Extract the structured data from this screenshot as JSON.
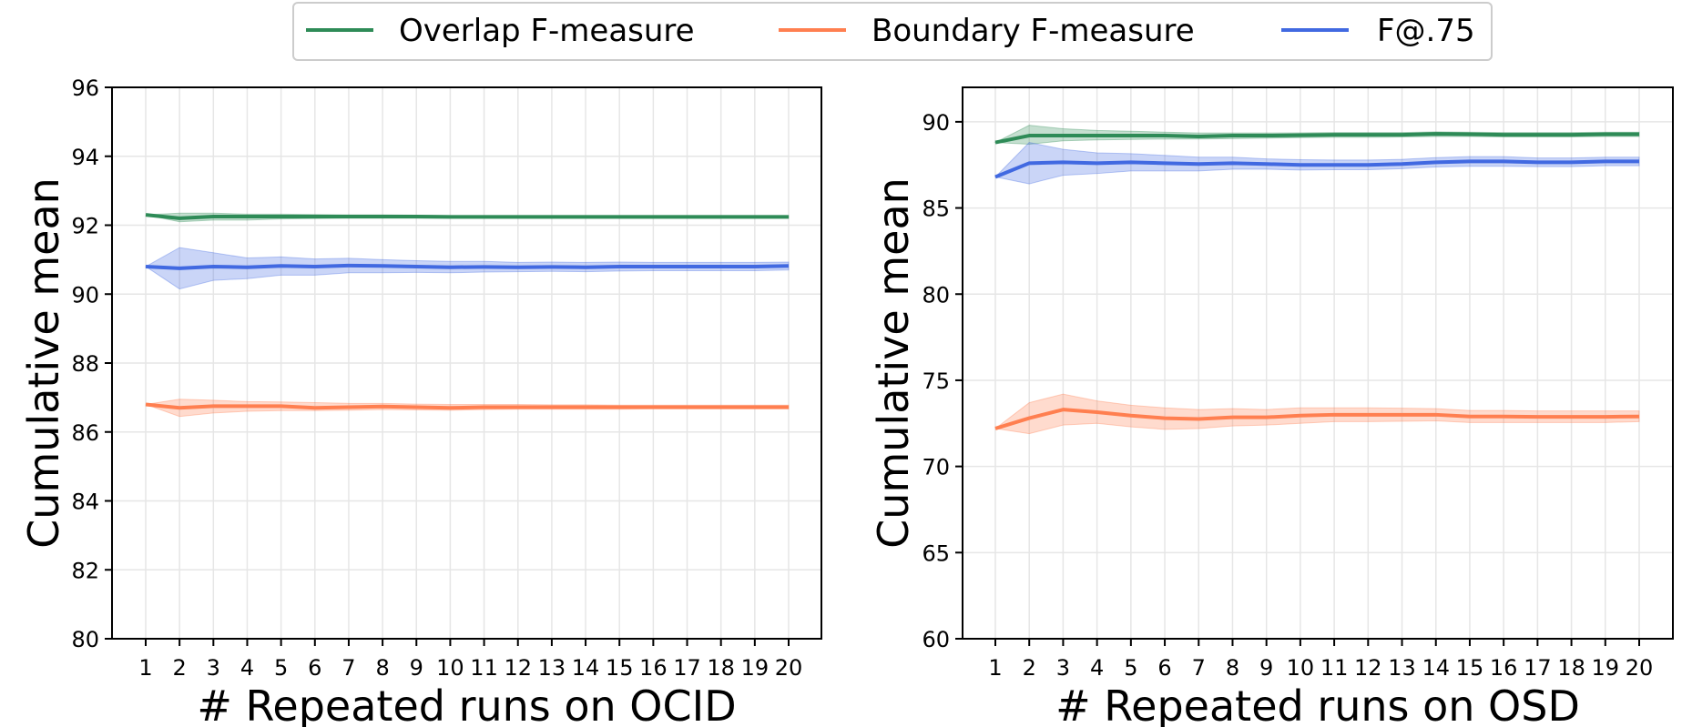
{
  "legend": {
    "placement": "top-center",
    "entries": [
      {
        "label": "Overlap F-measure",
        "color": "#2e8b57"
      },
      {
        "label": "Boundary F-measure",
        "color": "#ff7f50"
      },
      {
        "label": "F@.75",
        "color": "#4169e1"
      }
    ]
  },
  "chart_data": [
    {
      "type": "line",
      "xlabel": "# Repeated runs on OCID",
      "ylabel": "Cumulative mean",
      "ylim": [
        80,
        96
      ],
      "yticks": [
        80,
        82,
        84,
        86,
        88,
        90,
        92,
        94,
        96
      ],
      "x": [
        1,
        2,
        3,
        4,
        5,
        6,
        7,
        8,
        9,
        10,
        11,
        12,
        13,
        14,
        15,
        16,
        17,
        18,
        19,
        20
      ],
      "grid": true,
      "series": [
        {
          "name": "Overlap F-measure",
          "color": "#2e8b57",
          "values": [
            92.3,
            92.2,
            92.25,
            92.25,
            92.25,
            92.25,
            92.25,
            92.25,
            92.25,
            92.24,
            92.24,
            92.24,
            92.24,
            92.24,
            92.24,
            92.24,
            92.24,
            92.24,
            92.24,
            92.24
          ],
          "lower": [
            92.3,
            92.1,
            92.15,
            92.15,
            92.18,
            92.19,
            92.2,
            92.2,
            92.2,
            92.2,
            92.2,
            92.2,
            92.2,
            92.2,
            92.2,
            92.2,
            92.2,
            92.2,
            92.2,
            92.2
          ],
          "upper": [
            92.3,
            92.35,
            92.35,
            92.32,
            92.32,
            92.31,
            92.3,
            92.3,
            92.29,
            92.28,
            92.28,
            92.28,
            92.28,
            92.28,
            92.28,
            92.28,
            92.28,
            92.28,
            92.28,
            92.28
          ]
        },
        {
          "name": "Boundary F-measure",
          "color": "#ff7f50",
          "values": [
            86.8,
            86.7,
            86.75,
            86.75,
            86.75,
            86.7,
            86.72,
            86.74,
            86.72,
            86.7,
            86.72,
            86.72,
            86.72,
            86.72,
            86.72,
            86.72,
            86.72,
            86.72,
            86.72,
            86.72
          ],
          "lower": [
            86.8,
            86.45,
            86.55,
            86.6,
            86.62,
            86.62,
            86.63,
            86.65,
            86.64,
            86.63,
            86.65,
            86.66,
            86.66,
            86.66,
            86.66,
            86.67,
            86.67,
            86.67,
            86.67,
            86.67
          ],
          "upper": [
            86.8,
            86.95,
            86.92,
            86.88,
            86.87,
            86.85,
            86.83,
            86.83,
            86.81,
            86.8,
            86.8,
            86.8,
            86.79,
            86.79,
            86.78,
            86.78,
            86.78,
            86.78,
            86.78,
            86.78
          ]
        },
        {
          "name": "F@.75",
          "color": "#4169e1",
          "values": [
            90.8,
            90.75,
            90.8,
            90.78,
            90.82,
            90.8,
            90.83,
            90.82,
            90.8,
            90.78,
            90.79,
            90.78,
            90.79,
            90.78,
            90.8,
            90.8,
            90.8,
            90.8,
            90.8,
            90.82
          ],
          "lower": [
            90.8,
            90.15,
            90.4,
            90.45,
            90.55,
            90.55,
            90.62,
            90.62,
            90.63,
            90.62,
            90.64,
            90.65,
            90.66,
            90.65,
            90.67,
            90.68,
            90.68,
            90.68,
            90.68,
            90.7
          ],
          "upper": [
            90.8,
            91.35,
            91.2,
            91.05,
            91.08,
            91.02,
            91.04,
            91.0,
            90.97,
            90.95,
            90.95,
            90.92,
            90.93,
            90.92,
            90.93,
            90.92,
            90.92,
            90.92,
            90.92,
            90.93
          ]
        }
      ]
    },
    {
      "type": "line",
      "xlabel": "# Repeated runs on OSD",
      "ylabel": "Cumulative mean",
      "ylim": [
        60,
        92
      ],
      "yticks": [
        60,
        65,
        70,
        75,
        80,
        85,
        90
      ],
      "x": [
        1,
        2,
        3,
        4,
        5,
        6,
        7,
        8,
        9,
        10,
        11,
        12,
        13,
        14,
        15,
        16,
        17,
        18,
        19,
        20
      ],
      "grid": true,
      "series": [
        {
          "name": "Overlap F-measure",
          "color": "#2e8b57",
          "values": [
            88.8,
            89.2,
            89.2,
            89.2,
            89.2,
            89.2,
            89.15,
            89.2,
            89.2,
            89.22,
            89.25,
            89.25,
            89.25,
            89.3,
            89.28,
            89.25,
            89.25,
            89.25,
            89.28,
            89.28
          ],
          "lower": [
            88.8,
            88.7,
            88.9,
            88.95,
            88.98,
            89.0,
            89.0,
            89.02,
            89.05,
            89.08,
            89.1,
            89.1,
            89.12,
            89.15,
            89.15,
            89.12,
            89.12,
            89.12,
            89.15,
            89.15
          ],
          "upper": [
            88.8,
            89.8,
            89.6,
            89.5,
            89.45,
            89.4,
            89.35,
            89.35,
            89.35,
            89.36,
            89.38,
            89.38,
            89.38,
            89.42,
            89.4,
            89.38,
            89.38,
            89.38,
            89.4,
            89.4
          ]
        },
        {
          "name": "Boundary F-measure",
          "color": "#ff7f50",
          "values": [
            72.2,
            72.8,
            73.3,
            73.15,
            72.95,
            72.8,
            72.75,
            72.85,
            72.85,
            72.95,
            73.0,
            73.0,
            73.0,
            73.0,
            72.9,
            72.9,
            72.88,
            72.88,
            72.88,
            72.9
          ],
          "lower": [
            72.2,
            71.9,
            72.4,
            72.5,
            72.3,
            72.15,
            72.2,
            72.35,
            72.4,
            72.5,
            72.6,
            72.6,
            72.62,
            72.65,
            72.55,
            72.55,
            72.55,
            72.55,
            72.55,
            72.6
          ],
          "upper": [
            72.2,
            73.7,
            74.2,
            73.8,
            73.55,
            73.4,
            73.3,
            73.35,
            73.3,
            73.4,
            73.4,
            73.4,
            73.38,
            73.35,
            73.25,
            73.25,
            73.22,
            73.22,
            73.22,
            73.22
          ]
        },
        {
          "name": "F@.75",
          "color": "#4169e1",
          "values": [
            86.8,
            87.6,
            87.65,
            87.6,
            87.65,
            87.6,
            87.55,
            87.6,
            87.55,
            87.5,
            87.5,
            87.5,
            87.55,
            87.65,
            87.7,
            87.7,
            87.65,
            87.65,
            87.7,
            87.7
          ],
          "lower": [
            86.8,
            86.4,
            86.9,
            87.0,
            87.15,
            87.15,
            87.15,
            87.25,
            87.25,
            87.2,
            87.22,
            87.22,
            87.28,
            87.38,
            87.42,
            87.42,
            87.4,
            87.4,
            87.45,
            87.45
          ],
          "upper": [
            86.8,
            88.8,
            88.4,
            88.2,
            88.15,
            88.05,
            87.95,
            87.95,
            87.85,
            87.8,
            87.78,
            87.78,
            87.82,
            87.92,
            87.98,
            87.98,
            87.9,
            87.9,
            87.95,
            87.95
          ]
        }
      ]
    }
  ]
}
